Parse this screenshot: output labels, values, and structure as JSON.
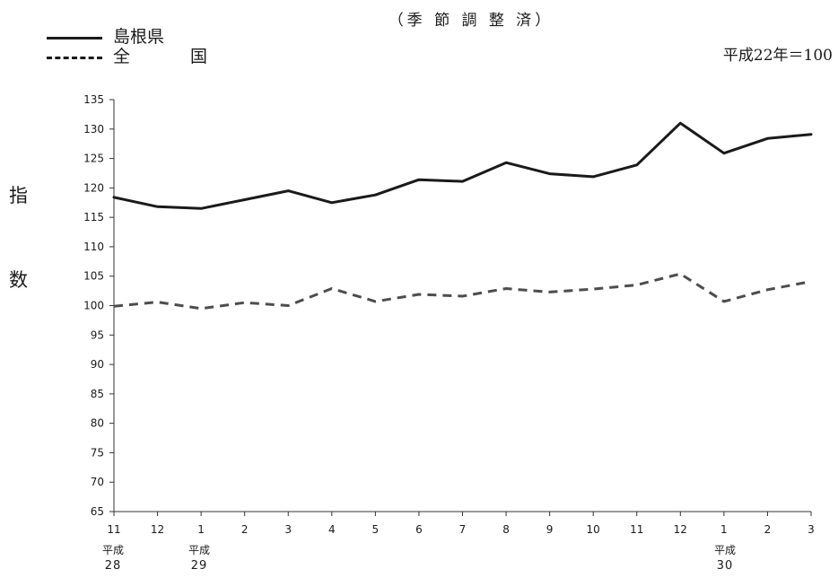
{
  "subtitle": "（季 節 調 整 済）",
  "index_note": "平成22年＝100",
  "y_title": [
    "指",
    "数"
  ],
  "colors": {
    "shimane": "#1a1a1a",
    "national": "#4d4d4d",
    "axis": "#333333"
  },
  "eras": [
    {
      "name": "平成",
      "year": "28"
    },
    {
      "name": "平成",
      "year": "29"
    },
    {
      "name": "平成",
      "year": "30"
    }
  ],
  "chart_data": {
    "type": "line",
    "categories": [
      "11",
      "12",
      "1",
      "2",
      "3",
      "4",
      "5",
      "6",
      "7",
      "8",
      "9",
      "10",
      "11",
      "12",
      "1",
      "2",
      "3"
    ],
    "ylim": [
      65,
      135
    ],
    "yticks": [
      65,
      70,
      75,
      80,
      85,
      90,
      95,
      100,
      105,
      110,
      115,
      120,
      125,
      130,
      135
    ],
    "grid": false,
    "legend_position": "top-left",
    "series": [
      {
        "name": "島根県",
        "style": "solid",
        "values": [
          118.4,
          116.8,
          116.5,
          118.0,
          119.5,
          117.5,
          118.8,
          121.4,
          121.1,
          124.3,
          122.4,
          121.9,
          123.9,
          131.0,
          125.9,
          128.4,
          129.1
        ]
      },
      {
        "name": "全　国",
        "style": "dashed",
        "values": [
          99.9,
          100.6,
          99.5,
          100.5,
          100.0,
          102.9,
          100.7,
          101.9,
          101.6,
          102.9,
          102.3,
          102.8,
          103.5,
          105.4,
          100.7,
          102.7,
          104.1
        ]
      }
    ]
  }
}
